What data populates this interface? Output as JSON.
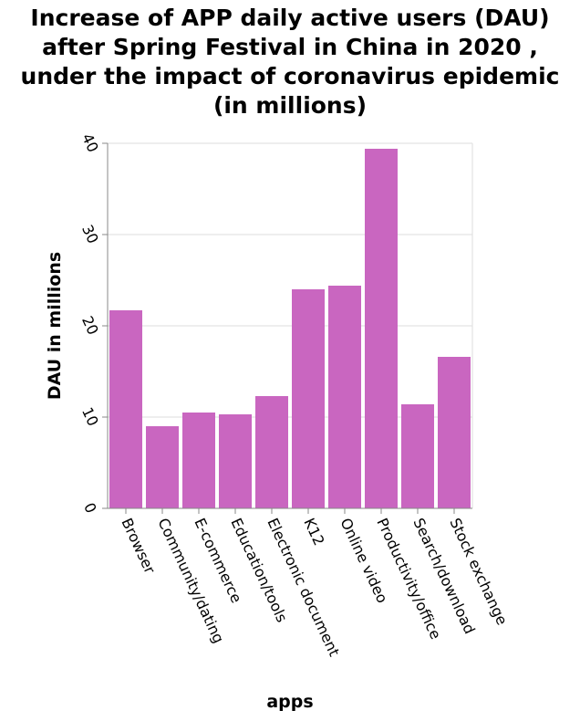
{
  "chart_data": {
    "type": "bar",
    "title": [
      "Increase of APP daily active users (DAU)",
      "after Spring Festival in China in 2020 ,",
      "under the impact of coronavirus epidemic",
      "(in millions)"
    ],
    "xlabel": "apps",
    "ylabel": "DAU in millions",
    "categories": [
      "Browser",
      "Community/dating",
      "E-commerce",
      "Education/tools",
      "Electronic document",
      "K12",
      "Online video",
      "Productivity/office",
      "Search/download",
      "Stock exchange"
    ],
    "values": [
      21.7,
      9.0,
      10.5,
      10.3,
      12.3,
      24.0,
      24.4,
      39.4,
      11.4,
      16.6
    ],
    "ylim": [
      0,
      40
    ],
    "yticks": [
      0,
      10,
      20,
      30,
      40
    ],
    "grid": true,
    "bar_color": "#c966c0",
    "grid_color": "#dddddd",
    "axis_color": "#888888"
  }
}
